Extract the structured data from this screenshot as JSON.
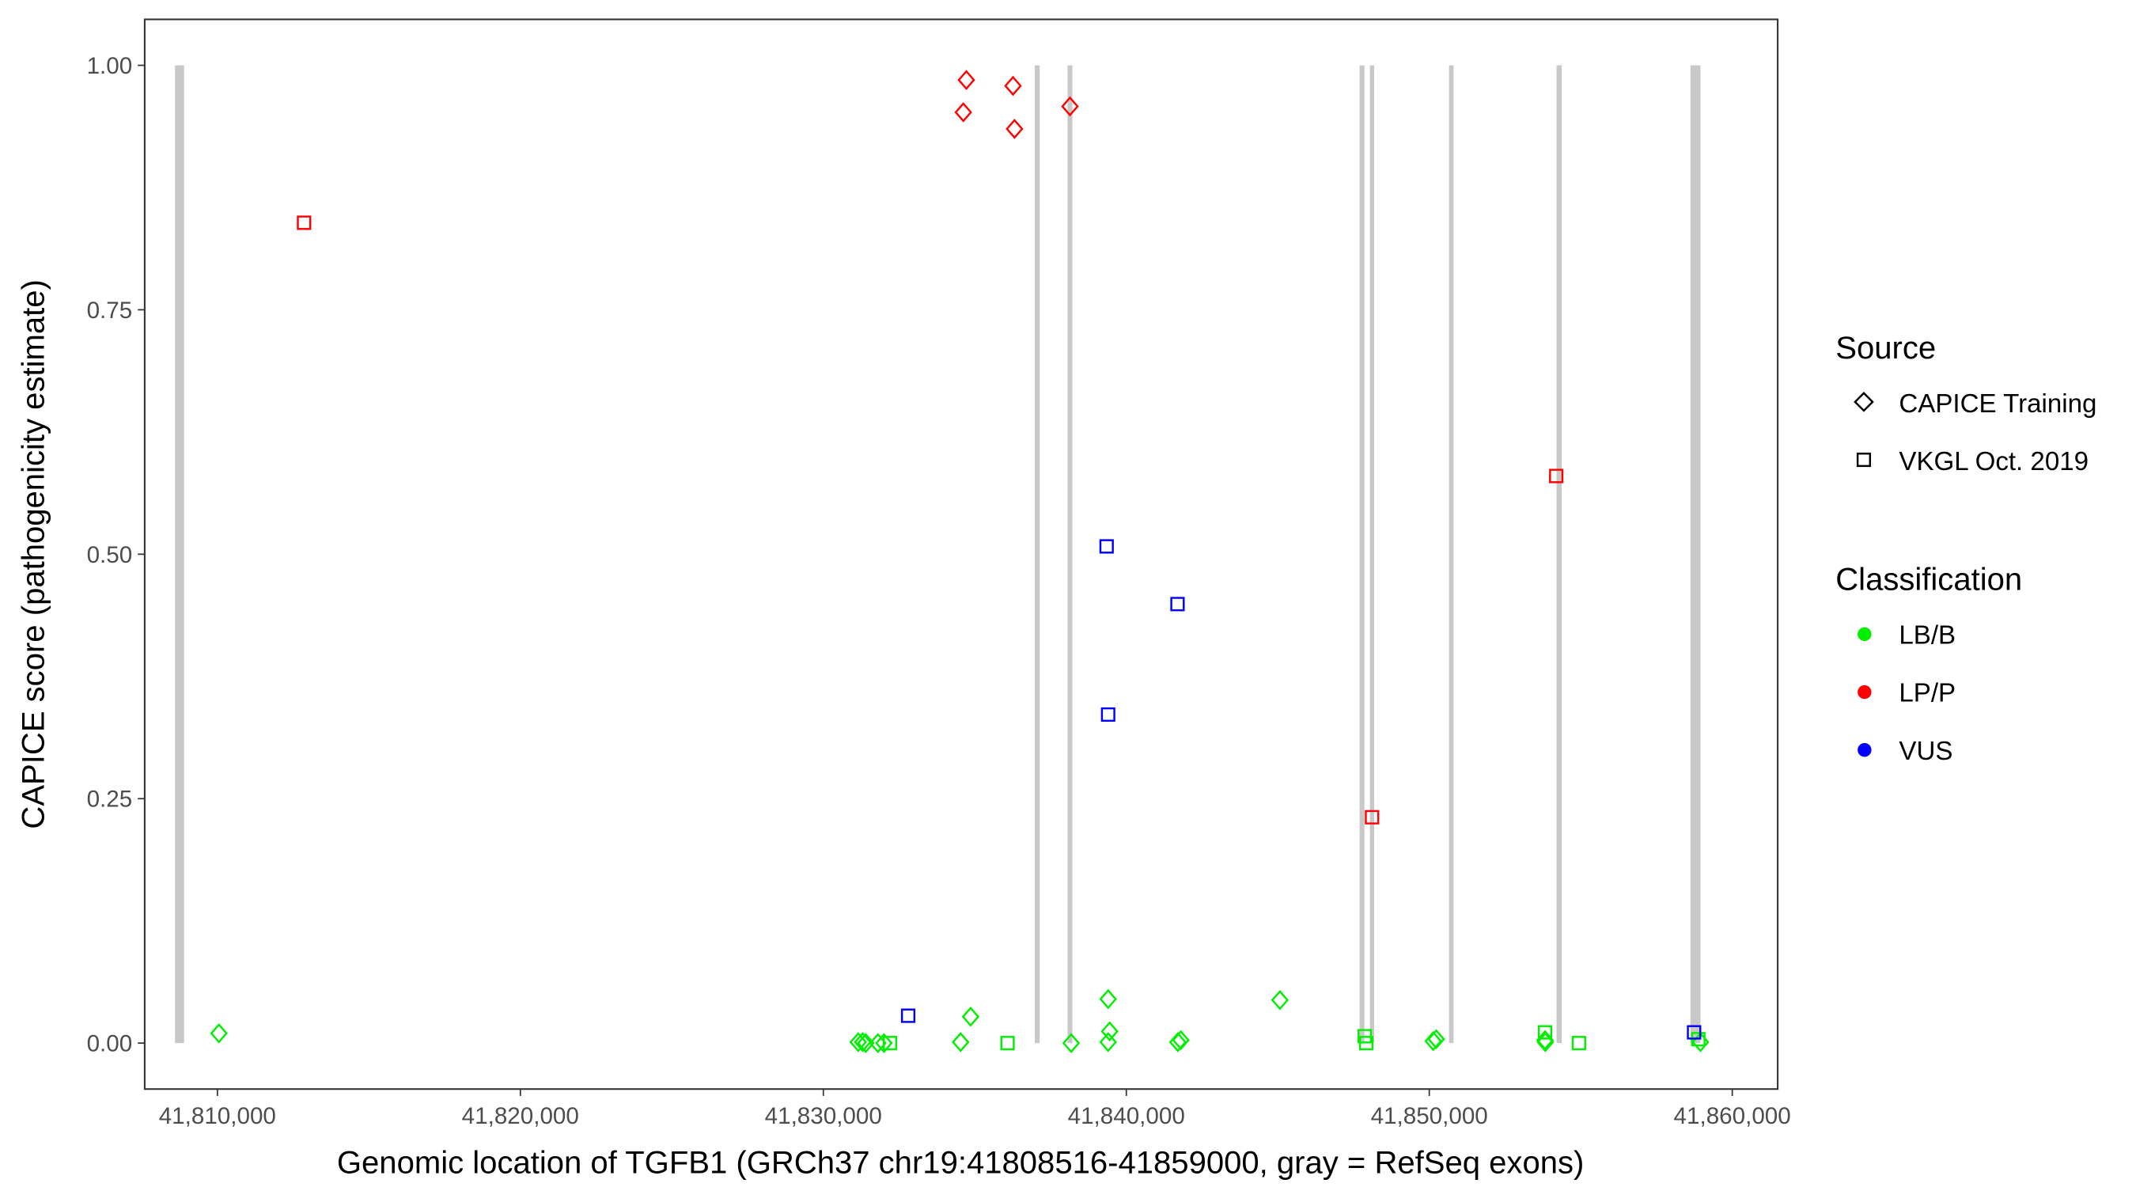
{
  "chart_data": {
    "type": "scatter",
    "xlabel": "Genomic location of TGFB1 (GRCh37 chr19:41808516-41859000, gray = RefSeq exons)",
    "ylabel": "CAPICE score (pathogenicity estimate)",
    "xlim": [
      41807600,
      41861500
    ],
    "ylim": [
      -0.047,
      1.047
    ],
    "x_ticks": [
      41810000,
      41820000,
      41830000,
      41840000,
      41850000,
      41860000
    ],
    "x_tick_labels": [
      "41,810,000",
      "41,820,000",
      "41,830,000",
      "41,840,000",
      "41,850,000",
      "41,860,000"
    ],
    "y_ticks": [
      0,
      0.25,
      0.5,
      0.75,
      1.0
    ],
    "y_tick_labels": [
      "0.00",
      "0.25",
      "0.50",
      "0.75",
      "1.00"
    ],
    "grid": false,
    "legend_placement": "right",
    "legend": {
      "source_title": "Source",
      "sources": [
        {
          "label": "CAPICE Training",
          "shape": "diamond"
        },
        {
          "label": "VKGL Oct. 2019",
          "shape": "square"
        }
      ],
      "classification_title": "Classification",
      "classes": [
        {
          "label": "LB/B",
          "color": "#00ee00"
        },
        {
          "label": "LP/P",
          "color": "#ff0000"
        },
        {
          "label": "VUS",
          "color": "#0000ff"
        }
      ]
    },
    "exons": [
      [
        41808600,
        41808900
      ],
      [
        41836980,
        41837140
      ],
      [
        41838060,
        41838220
      ],
      [
        41847700,
        41847860
      ],
      [
        41848040,
        41848180
      ],
      [
        41850650,
        41850800
      ],
      [
        41854200,
        41854370
      ],
      [
        41858620,
        41858950
      ]
    ],
    "points": [
      {
        "x": 41810050,
        "y": 0.01,
        "source": "CAPICE Training",
        "class": "LB/B"
      },
      {
        "x": 41831150,
        "y": 0.001,
        "source": "CAPICE Training",
        "class": "LB/B"
      },
      {
        "x": 41831300,
        "y": 0.001,
        "source": "CAPICE Training",
        "class": "LB/B"
      },
      {
        "x": 41831400,
        "y": 0.0,
        "source": "CAPICE Training",
        "class": "LB/B"
      },
      {
        "x": 41831800,
        "y": 0.0,
        "source": "CAPICE Training",
        "class": "LB/B"
      },
      {
        "x": 41832000,
        "y": 0.0,
        "source": "CAPICE Training",
        "class": "LB/B"
      },
      {
        "x": 41832200,
        "y": 0.0,
        "source": "VKGL Oct. 2019",
        "class": "LB/B"
      },
      {
        "x": 41834530,
        "y": 0.001,
        "source": "CAPICE Training",
        "class": "LB/B"
      },
      {
        "x": 41834860,
        "y": 0.027,
        "source": "CAPICE Training",
        "class": "LB/B"
      },
      {
        "x": 41836080,
        "y": 0.0,
        "source": "VKGL Oct. 2019",
        "class": "LB/B"
      },
      {
        "x": 41838180,
        "y": 0.0,
        "source": "CAPICE Training",
        "class": "LB/B"
      },
      {
        "x": 41839400,
        "y": 0.045,
        "source": "CAPICE Training",
        "class": "LB/B"
      },
      {
        "x": 41839450,
        "y": 0.012,
        "source": "CAPICE Training",
        "class": "LB/B"
      },
      {
        "x": 41839400,
        "y": 0.001,
        "source": "CAPICE Training",
        "class": "LB/B"
      },
      {
        "x": 41841700,
        "y": 0.001,
        "source": "CAPICE Training",
        "class": "LB/B"
      },
      {
        "x": 41841800,
        "y": 0.003,
        "source": "CAPICE Training",
        "class": "LB/B"
      },
      {
        "x": 41845070,
        "y": 0.044,
        "source": "CAPICE Training",
        "class": "LB/B"
      },
      {
        "x": 41847870,
        "y": 0.007,
        "source": "VKGL Oct. 2019",
        "class": "LB/B"
      },
      {
        "x": 41847920,
        "y": 0.0,
        "source": "VKGL Oct. 2019",
        "class": "LB/B"
      },
      {
        "x": 41850130,
        "y": 0.002,
        "source": "CAPICE Training",
        "class": "LB/B"
      },
      {
        "x": 41850230,
        "y": 0.004,
        "source": "CAPICE Training",
        "class": "LB/B"
      },
      {
        "x": 41853820,
        "y": 0.011,
        "source": "VKGL Oct. 2019",
        "class": "LB/B"
      },
      {
        "x": 41853820,
        "y": 0.003,
        "source": "CAPICE Training",
        "class": "LB/B"
      },
      {
        "x": 41853830,
        "y": 0.001,
        "source": "CAPICE Training",
        "class": "LB/B"
      },
      {
        "x": 41854940,
        "y": 0.0,
        "source": "VKGL Oct. 2019",
        "class": "LB/B"
      },
      {
        "x": 41858880,
        "y": 0.004,
        "source": "VKGL Oct. 2019",
        "class": "LB/B"
      },
      {
        "x": 41858950,
        "y": 0.001,
        "source": "CAPICE Training",
        "class": "LB/B"
      },
      {
        "x": 41834720,
        "y": 0.985,
        "source": "CAPICE Training",
        "class": "LP/P"
      },
      {
        "x": 41834620,
        "y": 0.952,
        "source": "CAPICE Training",
        "class": "LP/P"
      },
      {
        "x": 41836260,
        "y": 0.979,
        "source": "CAPICE Training",
        "class": "LP/P"
      },
      {
        "x": 41836310,
        "y": 0.935,
        "source": "CAPICE Training",
        "class": "LP/P"
      },
      {
        "x": 41838140,
        "y": 0.958,
        "source": "CAPICE Training",
        "class": "LP/P"
      },
      {
        "x": 41812860,
        "y": 0.839,
        "source": "VKGL Oct. 2019",
        "class": "LP/P"
      },
      {
        "x": 41854190,
        "y": 0.58,
        "source": "VKGL Oct. 2019",
        "class": "LP/P"
      },
      {
        "x": 41848110,
        "y": 0.231,
        "source": "VKGL Oct. 2019",
        "class": "LP/P"
      },
      {
        "x": 41832800,
        "y": 0.028,
        "source": "VKGL Oct. 2019",
        "class": "VUS"
      },
      {
        "x": 41839350,
        "y": 0.508,
        "source": "VKGL Oct. 2019",
        "class": "VUS"
      },
      {
        "x": 41841690,
        "y": 0.449,
        "source": "VKGL Oct. 2019",
        "class": "VUS"
      },
      {
        "x": 41839400,
        "y": 0.336,
        "source": "VKGL Oct. 2019",
        "class": "VUS"
      },
      {
        "x": 41858740,
        "y": 0.011,
        "source": "VKGL Oct. 2019",
        "class": "VUS"
      }
    ]
  }
}
